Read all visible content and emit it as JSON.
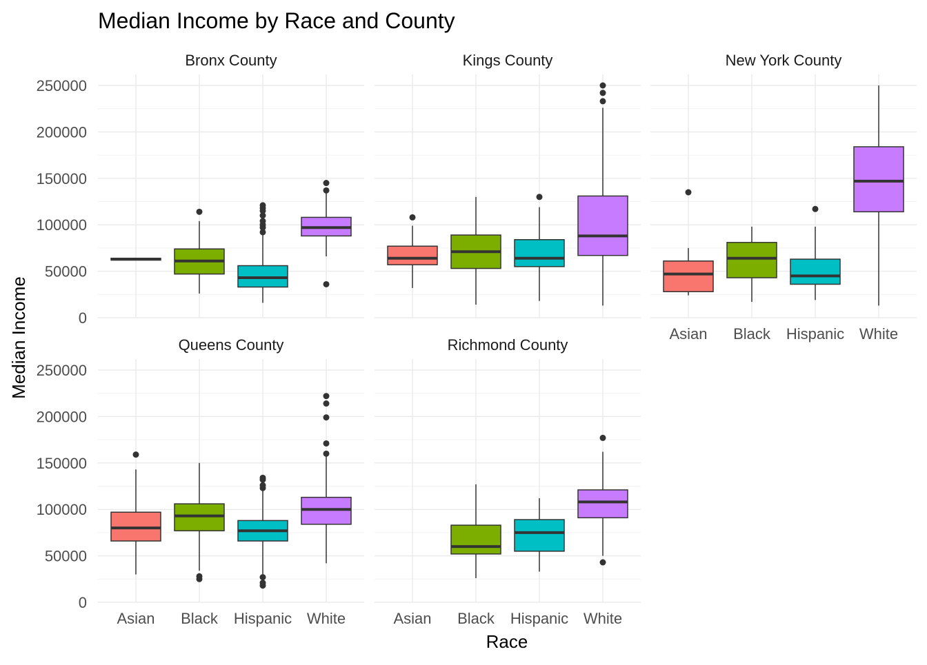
{
  "chart_data": {
    "type": "box",
    "title": "Median Income by Race and County",
    "xlabel": "Race",
    "ylabel": "Median Income",
    "ylim": [
      0,
      250000
    ],
    "y_ticks": [
      "0",
      "50000",
      "100000",
      "150000",
      "200000",
      "250000"
    ],
    "categories": [
      "Asian",
      "Black",
      "Hispanic",
      "White"
    ],
    "colors": {
      "Asian": "#F8766D",
      "Black": "#7CAE00",
      "Hispanic": "#00BFC4",
      "White": "#C77CFF"
    },
    "legend": "none",
    "grid": true,
    "panels": [
      {
        "name": "Bronx County",
        "boxes": [
          {
            "category": "Asian",
            "min": 62000,
            "q1": 62000,
            "median": 63000,
            "q3": 64000,
            "max": 64000,
            "outliers": []
          },
          {
            "category": "Black",
            "min": 26000,
            "q1": 47000,
            "median": 61000,
            "q3": 74000,
            "max": 104000,
            "outliers": [
              114000
            ]
          },
          {
            "category": "Hispanic",
            "min": 16000,
            "q1": 33000,
            "median": 43000,
            "q3": 56000,
            "max": 90000,
            "outliers": [
              92000,
              97000,
              100000,
              104000,
              110000,
              115000,
              118000,
              121000
            ]
          },
          {
            "category": "White",
            "min": 66000,
            "q1": 88000,
            "median": 97000,
            "q3": 108000,
            "max": 135000,
            "outliers": [
              36000,
              137000,
              145000
            ]
          }
        ]
      },
      {
        "name": "Kings County",
        "boxes": [
          {
            "category": "Asian",
            "min": 32000,
            "q1": 57000,
            "median": 64000,
            "q3": 77000,
            "max": 99000,
            "outliers": [
              108000
            ]
          },
          {
            "category": "Black",
            "min": 14000,
            "q1": 53000,
            "median": 71000,
            "q3": 89000,
            "max": 130000,
            "outliers": []
          },
          {
            "category": "Hispanic",
            "min": 18000,
            "q1": 55000,
            "median": 64000,
            "q3": 84000,
            "max": 119000,
            "outliers": [
              130000
            ]
          },
          {
            "category": "White",
            "min": 13000,
            "q1": 67000,
            "median": 88000,
            "q3": 131000,
            "max": 226000,
            "outliers": [
              233000,
              242000,
              250000
            ]
          }
        ]
      },
      {
        "name": "New York County",
        "boxes": [
          {
            "category": "Asian",
            "min": 24000,
            "q1": 28000,
            "median": 47000,
            "q3": 61000,
            "max": 75000,
            "outliers": [
              135000
            ]
          },
          {
            "category": "Black",
            "min": 17000,
            "q1": 43000,
            "median": 64000,
            "q3": 81000,
            "max": 98000,
            "outliers": []
          },
          {
            "category": "Hispanic",
            "min": 19000,
            "q1": 36000,
            "median": 45000,
            "q3": 63000,
            "max": 98000,
            "outliers": [
              117000
            ]
          },
          {
            "category": "White",
            "min": 13000,
            "q1": 114000,
            "median": 147000,
            "q3": 184000,
            "max": 250000,
            "outliers": []
          }
        ]
      },
      {
        "name": "Queens County",
        "boxes": [
          {
            "category": "Asian",
            "min": 30000,
            "q1": 66000,
            "median": 80000,
            "q3": 97000,
            "max": 143000,
            "outliers": [
              159000
            ]
          },
          {
            "category": "Black",
            "min": 34000,
            "q1": 77000,
            "median": 93000,
            "q3": 106000,
            "max": 150000,
            "outliers": [
              25000,
              28000
            ]
          },
          {
            "category": "Hispanic",
            "min": 30000,
            "q1": 66000,
            "median": 77000,
            "q3": 88000,
            "max": 120000,
            "outliers": [
              18000,
              21000,
              27000,
              123000,
              126000,
              132000,
              134000
            ]
          },
          {
            "category": "White",
            "min": 42000,
            "q1": 84000,
            "median": 100000,
            "q3": 113000,
            "max": 158000,
            "outliers": [
              160000,
              171000,
              199000,
              214000,
              222000
            ]
          }
        ]
      },
      {
        "name": "Richmond County",
        "boxes": [
          {
            "category": "Black",
            "min": 26000,
            "q1": 52000,
            "median": 60000,
            "q3": 83000,
            "max": 127000,
            "outliers": []
          },
          {
            "category": "Hispanic",
            "min": 33000,
            "q1": 55000,
            "median": 75000,
            "q3": 89000,
            "max": 112000,
            "outliers": []
          },
          {
            "category": "White",
            "min": 50000,
            "q1": 91000,
            "median": 108000,
            "q3": 121000,
            "max": 162000,
            "outliers": [
              43000,
              177000
            ]
          }
        ]
      }
    ]
  }
}
